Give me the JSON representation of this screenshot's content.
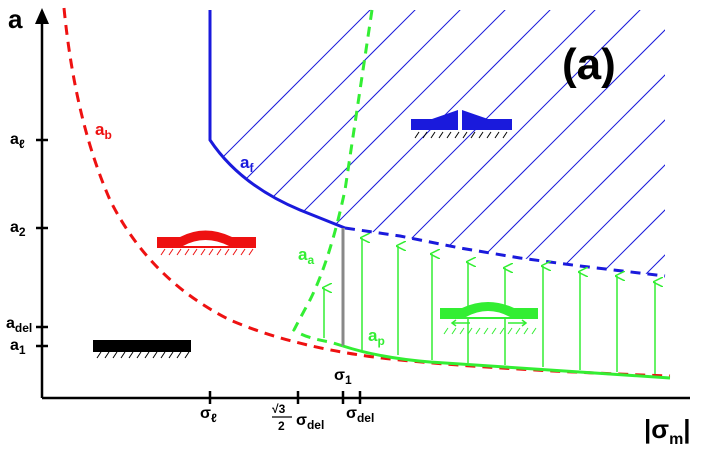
{
  "panel_label": "(a)",
  "axes": {
    "y_label": "a",
    "x_label": "|σm|",
    "x_label_main": "|σ",
    "x_label_sub": "m",
    "x_label_end": "|"
  },
  "y_ticks": [
    {
      "main": "a",
      "sub": "ℓ"
    },
    {
      "main": "a",
      "sub": "2"
    },
    {
      "main": "a",
      "sub": "del"
    },
    {
      "main": "a",
      "sub": "1"
    }
  ],
  "x_ticks": [
    {
      "main": "σ",
      "sub": "ℓ"
    },
    {
      "frac_num": "√3",
      "frac_den": "2",
      "main": "σ",
      "sub": "del"
    },
    {
      "main": "σ",
      "sub": "del"
    }
  ],
  "point_label": {
    "main": "σ",
    "sub": "1"
  },
  "curve_labels": [
    {
      "main": "a",
      "sub": "b",
      "color": "#ee1111"
    },
    {
      "main": "a",
      "sub": "f",
      "color": "#1a1adc"
    },
    {
      "main": "a",
      "sub": "a",
      "color": "#33ee33"
    },
    {
      "main": "a",
      "sub": "p",
      "color": "#33ee33"
    }
  ],
  "colors": {
    "red": "#ee1111",
    "blue": "#1a1adc",
    "green": "#33ee33",
    "gray": "#888888",
    "black": "#000000"
  },
  "icons": [
    "flat-film-icon",
    "buckled-film-icon",
    "delaminated-film-icon",
    "cracked-film-icon"
  ]
}
